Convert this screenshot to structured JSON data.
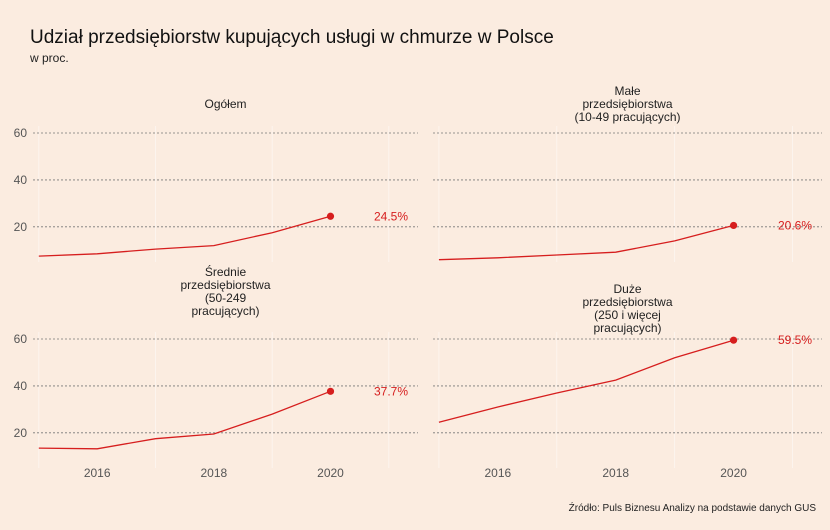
{
  "title": "Udział przedsiębiorstw kupujących usługi w chmurze w Polsce",
  "subtitle": "w proc.",
  "caption": "Źródło: Puls Biznesu Analizy na podstawie danych GUS",
  "colors": {
    "background": "#fbece0",
    "series": "#d61e1e",
    "grid": "#777777"
  },
  "chart_data": {
    "type": "line",
    "layout": "facet-grid 2x2",
    "x_ticks": [
      2016,
      2018,
      2020
    ],
    "xlim": [
      2014.9,
      2021.5
    ],
    "y_ticks": [
      20,
      40,
      60
    ],
    "ylim": [
      5,
      63
    ],
    "grid": "dotted horizontal",
    "panels": [
      {
        "title_lines": [
          "Ogółem"
        ],
        "x": [
          2015,
          2016,
          2017,
          2018,
          2019,
          2020
        ],
        "y": [
          7.5,
          8.5,
          10.5,
          12,
          17.5,
          24.5
        ],
        "end_label": "24.5%"
      },
      {
        "title_lines": [
          "Małe",
          "przedsiębiorstwa",
          "(10-49 pracujących)"
        ],
        "x": [
          2015,
          2016,
          2017,
          2018,
          2019,
          2020
        ],
        "y": [
          6,
          6.8,
          8,
          9.2,
          14,
          20.6
        ],
        "end_label": "20.6%"
      },
      {
        "title_lines": [
          "Średnie",
          "przedsiębiorstwa",
          "(50-249",
          "pracujących)"
        ],
        "x": [
          2015,
          2016,
          2017,
          2018,
          2019,
          2020
        ],
        "y": [
          13.5,
          13.2,
          17.5,
          19.5,
          28,
          37.7
        ],
        "end_label": "37.7%"
      },
      {
        "title_lines": [
          "Duże",
          "przedsiębiorstwa",
          "(250 i więcej",
          "pracujących)"
        ],
        "x": [
          2015,
          2016,
          2017,
          2018,
          2019,
          2020
        ],
        "y": [
          24.5,
          31,
          37,
          42.5,
          52,
          59.5
        ],
        "end_label": "59.5%"
      }
    ]
  }
}
